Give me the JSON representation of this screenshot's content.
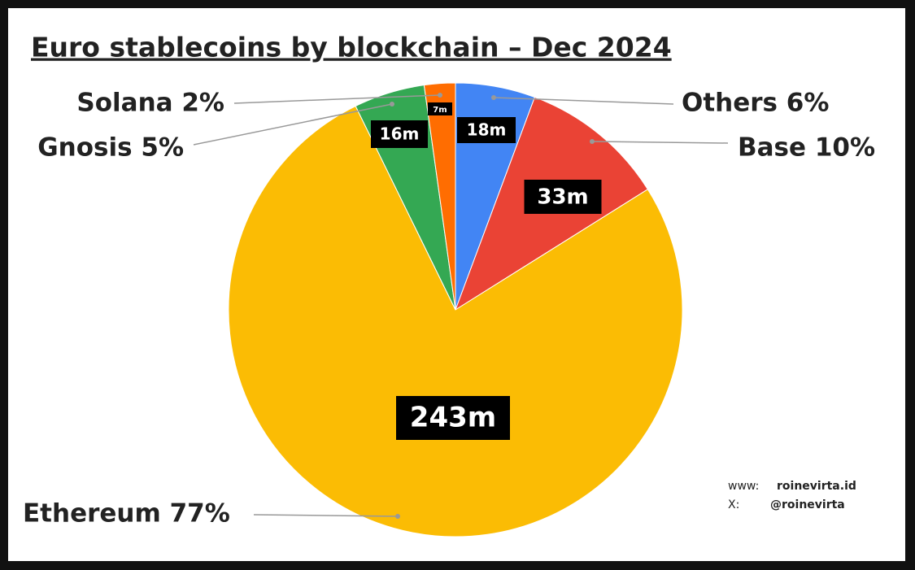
{
  "chart_data": {
    "type": "pie",
    "title": "Euro stablecoins by blockchain – Dec 2024",
    "categories": [
      "Others 6%",
      "Base 10%",
      "Ethereum 77%",
      "Gnosis 5%",
      "Solana 2%"
    ],
    "values": [
      18,
      33,
      243,
      16,
      7
    ],
    "value_labels": [
      "18m",
      "33m",
      "243m",
      "16m",
      "7m"
    ],
    "colors": [
      "#4285f4",
      "#ea4335",
      "#fbbc04",
      "#34a853",
      "#ff6d01"
    ],
    "footer": [
      [
        "www:",
        "roinevirta.id"
      ],
      [
        "X:",
        "@roinevirta"
      ]
    ]
  }
}
